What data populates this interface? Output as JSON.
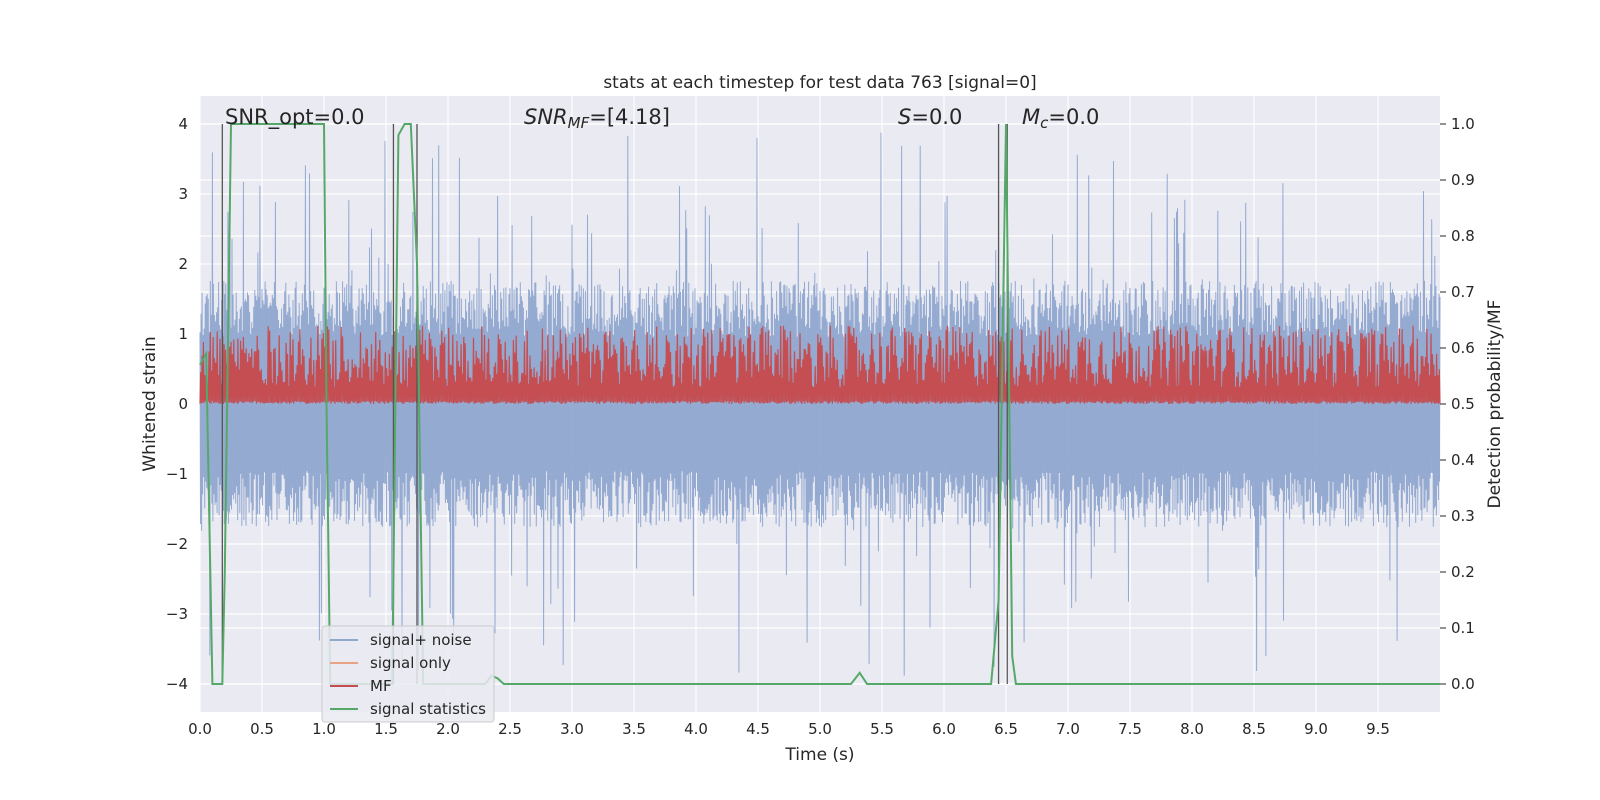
{
  "chart_data": {
    "type": "line",
    "title": "stats at each timestep for test data 763 [signal=0]",
    "xlabel": "Time (s)",
    "ylabel": "Whitened strain",
    "y2label": "Detection probability/MF",
    "xlim": [
      0,
      10
    ],
    "ylim": [
      -4.4,
      4.4
    ],
    "y2lim": [
      -0.05,
      1.05
    ],
    "xticks": [
      0.0,
      0.5,
      1.0,
      1.5,
      2.0,
      2.5,
      3.0,
      3.5,
      4.0,
      4.5,
      5.0,
      5.5,
      6.0,
      6.5,
      7.0,
      7.5,
      8.0,
      8.5,
      9.0,
      9.5
    ],
    "xtick_labels": [
      "0.0",
      "0.5",
      "1.0",
      "1.5",
      "2.0",
      "2.5",
      "3.0",
      "3.5",
      "4.0",
      "4.5",
      "5.0",
      "5.5",
      "6.0",
      "6.5",
      "7.0",
      "7.5",
      "8.0",
      "8.5",
      "9.0",
      "9.5"
    ],
    "yticks": [
      -4,
      -3,
      -2,
      -1,
      0,
      1,
      2,
      3,
      4
    ],
    "ytick_labels": [
      "−4",
      "−3",
      "−2",
      "−1",
      "0",
      "1",
      "2",
      "3",
      "4"
    ],
    "y2ticks": [
      0.0,
      0.1,
      0.2,
      0.3,
      0.4,
      0.5,
      0.6,
      0.7,
      0.8,
      0.9,
      1.0
    ],
    "y2tick_labels": [
      "0.0",
      "0.1",
      "0.2",
      "0.3",
      "0.4",
      "0.5",
      "0.6",
      "0.7",
      "0.8",
      "0.9",
      "1.0"
    ],
    "grid": true,
    "legend_position": "lower-left",
    "annotations": {
      "snr_opt": "SNR_opt=0.0",
      "snr_mf_main": "SNR",
      "snr_mf_sub": "MF",
      "snr_mf_value": "=[4.18]",
      "s_main": "S",
      "s_value": "=0.0",
      "mc_main": "M",
      "mc_sub": "c",
      "mc_value": "=0.0"
    },
    "vertical_lines_x": [
      0.18,
      1.56,
      1.75,
      6.44,
      6.51
    ],
    "series": [
      {
        "name": "signal+ noise",
        "color": "#8fa6cf",
        "axis": "left",
        "amplitude_typical": 1.6,
        "amplitude_peak": 3.9
      },
      {
        "name": "signal only",
        "color": "#e8a386",
        "axis": "left",
        "values": []
      },
      {
        "name": "MF",
        "color": "#c44e52",
        "axis": "right",
        "baseline": 0.5,
        "band": [
          0.53,
          0.64
        ]
      },
      {
        "name": "signal statistics",
        "color": "#55a868",
        "axis": "right",
        "x": [
          0.0,
          0.05,
          0.1,
          0.12,
          0.18,
          0.2,
          0.25,
          0.3,
          0.5,
          0.8,
          1.0,
          1.02,
          1.05,
          1.08,
          1.12,
          1.55,
          1.6,
          1.65,
          1.7,
          1.75,
          1.8,
          1.9,
          2.3,
          2.35,
          2.4,
          2.45,
          5.25,
          5.32,
          5.38,
          6.38,
          6.44,
          6.5,
          6.55,
          6.58,
          10.0
        ],
        "values": [
          0.57,
          0.59,
          0.0,
          0.0,
          0.0,
          0.2,
          1.0,
          1.0,
          1.0,
          1.0,
          1.0,
          0.5,
          0.0,
          0.0,
          0.0,
          0.0,
          0.98,
          1.0,
          1.0,
          0.75,
          0.0,
          0.0,
          0.0,
          0.015,
          0.01,
          0.0,
          0.0,
          0.02,
          0.0,
          0.0,
          0.15,
          1.0,
          0.05,
          0.0,
          0.0
        ]
      }
    ]
  }
}
